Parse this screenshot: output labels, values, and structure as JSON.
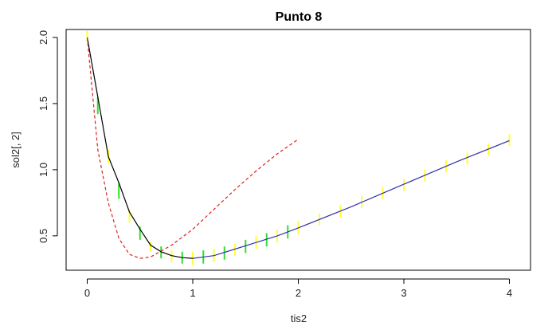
{
  "chart_data": {
    "type": "line",
    "title": "Punto 8",
    "xlabel": "tis2",
    "ylabel": "sol2[, 2]",
    "xlim": [
      -0.2,
      4.2
    ],
    "ylim": [
      0.24,
      2.06
    ],
    "xticks": [
      0,
      1,
      2,
      3,
      4
    ],
    "yticks": [
      0.5,
      1.0,
      1.5,
      2.0
    ],
    "xtick_labels": [
      "0",
      "1",
      "2",
      "3",
      "4"
    ],
    "ytick_labels": [
      "0.5",
      "1.0",
      "1.5",
      "2.0"
    ],
    "grid": false,
    "legend": "none",
    "series": [
      {
        "style": "solid",
        "color": "#000000",
        "x": [
          0,
          0.1,
          0.2,
          0.3,
          0.4,
          0.5,
          0.6,
          0.7,
          0.8,
          0.9,
          1.0
        ],
        "y": [
          2.0,
          1.55,
          1.1,
          0.9,
          0.68,
          0.55,
          0.43,
          0.38,
          0.35,
          0.335,
          0.33
        ]
      },
      {
        "style": "solid",
        "color": "#3333aa",
        "x": [
          1.0,
          1.2,
          1.4,
          1.6,
          1.8,
          2.0,
          2.5,
          3.0,
          3.5,
          4.0
        ],
        "y": [
          0.33,
          0.35,
          0.4,
          0.45,
          0.5,
          0.56,
          0.72,
          0.89,
          1.06,
          1.22
        ]
      },
      {
        "style": "dashed",
        "color": "#dd2222",
        "x": [
          0,
          0.1,
          0.2,
          0.3,
          0.4,
          0.5,
          0.6,
          0.8,
          1.0,
          1.2,
          1.4,
          1.6,
          1.8,
          2.0
        ],
        "y": [
          2.0,
          1.15,
          0.75,
          0.48,
          0.36,
          0.33,
          0.34,
          0.43,
          0.55,
          0.7,
          0.85,
          0.99,
          1.12,
          1.23
        ]
      }
    ],
    "error_bars": [
      {
        "x": 0.0,
        "low": 1.97,
        "high": 2.05,
        "color": "#ffff33"
      },
      {
        "x": 0.1,
        "low": 1.42,
        "high": 1.55,
        "color": "#33dd33"
      },
      {
        "x": 0.2,
        "low": 1.05,
        "high": 1.15,
        "color": "#ffff33"
      },
      {
        "x": 0.3,
        "low": 0.78,
        "high": 0.9,
        "color": "#33dd33"
      },
      {
        "x": 0.4,
        "low": 0.6,
        "high": 0.7,
        "color": "#ffff33"
      },
      {
        "x": 0.5,
        "low": 0.47,
        "high": 0.57,
        "color": "#33dd33"
      },
      {
        "x": 0.6,
        "low": 0.38,
        "high": 0.46,
        "color": "#ffff33"
      },
      {
        "x": 0.7,
        "low": 0.33,
        "high": 0.42,
        "color": "#33dd33"
      },
      {
        "x": 0.8,
        "low": 0.3,
        "high": 0.39,
        "color": "#ffff33"
      },
      {
        "x": 0.9,
        "low": 0.29,
        "high": 0.38,
        "color": "#33dd33"
      },
      {
        "x": 1.0,
        "low": 0.28,
        "high": 0.38,
        "color": "#ffff33"
      },
      {
        "x": 1.1,
        "low": 0.29,
        "high": 0.39,
        "color": "#33dd33"
      },
      {
        "x": 1.2,
        "low": 0.3,
        "high": 0.4,
        "color": "#ffff33"
      },
      {
        "x": 1.3,
        "low": 0.32,
        "high": 0.42,
        "color": "#33dd33"
      },
      {
        "x": 1.4,
        "low": 0.35,
        "high": 0.44,
        "color": "#ffff33"
      },
      {
        "x": 1.5,
        "low": 0.37,
        "high": 0.47,
        "color": "#33dd33"
      },
      {
        "x": 1.6,
        "low": 0.4,
        "high": 0.5,
        "color": "#ffff33"
      },
      {
        "x": 1.7,
        "low": 0.42,
        "high": 0.52,
        "color": "#33dd33"
      },
      {
        "x": 1.8,
        "low": 0.45,
        "high": 0.55,
        "color": "#ffff33"
      },
      {
        "x": 1.9,
        "low": 0.48,
        "high": 0.58,
        "color": "#33dd33"
      },
      {
        "x": 2.0,
        "low": 0.51,
        "high": 0.61,
        "color": "#ffff33"
      },
      {
        "x": 2.2,
        "low": 0.58,
        "high": 0.67,
        "color": "#ffff33"
      },
      {
        "x": 2.4,
        "low": 0.64,
        "high": 0.73,
        "color": "#ffff33"
      },
      {
        "x": 2.6,
        "low": 0.71,
        "high": 0.8,
        "color": "#ffff33"
      },
      {
        "x": 2.8,
        "low": 0.78,
        "high": 0.87,
        "color": "#ffff33"
      },
      {
        "x": 3.0,
        "low": 0.84,
        "high": 0.93,
        "color": "#ffff33"
      },
      {
        "x": 3.2,
        "low": 0.91,
        "high": 1.0,
        "color": "#ffff33"
      },
      {
        "x": 3.4,
        "low": 0.98,
        "high": 1.07,
        "color": "#ffff33"
      },
      {
        "x": 3.6,
        "low": 1.04,
        "high": 1.13,
        "color": "#ffff33"
      },
      {
        "x": 3.8,
        "low": 1.11,
        "high": 1.2,
        "color": "#ffff33"
      },
      {
        "x": 4.0,
        "low": 1.18,
        "high": 1.27,
        "color": "#ffff33"
      }
    ]
  }
}
